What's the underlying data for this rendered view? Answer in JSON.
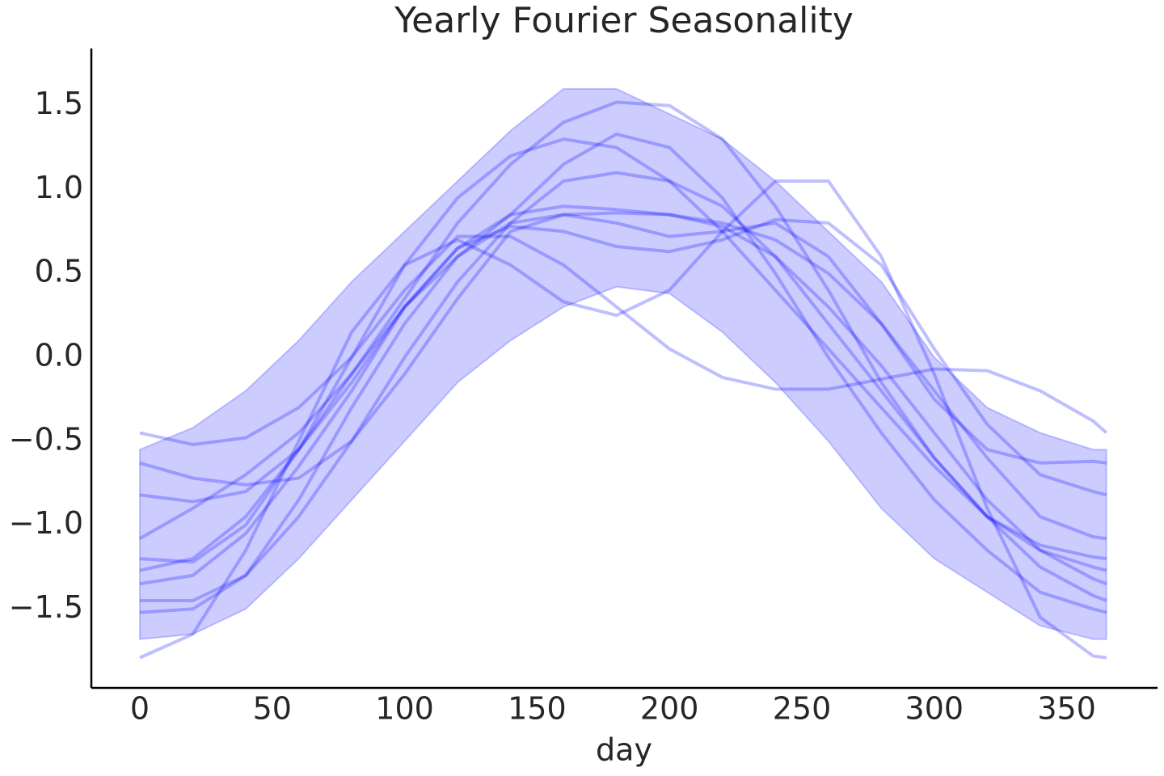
{
  "chart_data": {
    "type": "line",
    "title": "Yearly Fourier Seasonality",
    "xlabel": "day",
    "x": [
      0,
      20,
      40,
      60,
      80,
      100,
      120,
      140,
      160,
      180,
      200,
      220,
      240,
      260,
      280,
      300,
      320,
      340,
      360,
      365
    ],
    "band": {
      "color": "#0000ff",
      "opacity": 0.2,
      "upper": [
        -0.55,
        -0.42,
        -0.2,
        0.1,
        0.45,
        0.75,
        1.05,
        1.35,
        1.6,
        1.6,
        1.45,
        1.3,
        1.05,
        0.75,
        0.45,
        0.0,
        -0.3,
        -0.45,
        -0.55,
        -0.55
      ],
      "lower": [
        -1.68,
        -1.65,
        -1.5,
        -1.2,
        -0.85,
        -0.5,
        -0.15,
        0.1,
        0.3,
        0.42,
        0.38,
        0.15,
        -0.15,
        -0.5,
        -0.9,
        -1.2,
        -1.4,
        -1.6,
        -1.68,
        -1.68
      ]
    },
    "line_opacity": 0.25,
    "series": [
      {
        "color": "#0000ff",
        "values": [
          -0.45,
          -0.52,
          -0.48,
          -0.3,
          0.0,
          0.4,
          0.72,
          0.72,
          0.55,
          0.3,
          0.05,
          -0.12,
          -0.19,
          -0.19,
          -0.13,
          -0.07,
          -0.08,
          -0.2,
          -0.38,
          -0.45
        ]
      },
      {
        "color": "#0000ff",
        "values": [
          -0.63,
          -0.72,
          -0.76,
          -0.72,
          -0.5,
          -0.1,
          0.35,
          0.75,
          0.85,
          0.8,
          0.72,
          0.75,
          0.8,
          0.6,
          0.2,
          -0.25,
          -0.55,
          -0.63,
          -0.62,
          -0.63
        ]
      },
      {
        "color": "#0000ff",
        "values": [
          -0.82,
          -0.86,
          -0.8,
          -0.55,
          -0.15,
          0.3,
          0.65,
          0.78,
          0.75,
          0.66,
          0.63,
          0.7,
          0.82,
          0.8,
          0.55,
          0.05,
          -0.4,
          -0.7,
          -0.8,
          -0.82
        ]
      },
      {
        "color": "#0000ff",
        "values": [
          -1.08,
          -0.9,
          -0.7,
          -0.45,
          -0.1,
          0.3,
          0.6,
          0.8,
          0.85,
          0.86,
          0.85,
          0.8,
          0.7,
          0.5,
          0.2,
          -0.2,
          -0.6,
          -0.95,
          -1.07,
          -1.08
        ]
      },
      {
        "color": "#0000ff",
        "values": [
          -1.2,
          -1.22,
          -1.0,
          -0.55,
          0.0,
          0.55,
          0.95,
          1.2,
          1.3,
          1.25,
          1.05,
          0.75,
          0.4,
          0.05,
          -0.3,
          -0.65,
          -0.95,
          -1.12,
          -1.19,
          -1.2
        ]
      },
      {
        "color": "#0000ff",
        "values": [
          -1.27,
          -1.2,
          -0.95,
          -0.55,
          -0.1,
          0.35,
          0.8,
          1.15,
          1.4,
          1.52,
          1.5,
          1.3,
          0.9,
          0.4,
          -0.15,
          -0.6,
          -0.95,
          -1.15,
          -1.25,
          -1.27
        ]
      },
      {
        "color": "#0000ff",
        "values": [
          -1.35,
          -1.3,
          -1.05,
          -0.65,
          -0.2,
          0.3,
          0.65,
          0.85,
          0.9,
          0.88,
          0.85,
          0.78,
          0.6,
          0.3,
          -0.05,
          -0.45,
          -0.85,
          -1.15,
          -1.32,
          -1.35
        ]
      },
      {
        "color": "#0000ff",
        "values": [
          -1.45,
          -1.45,
          -1.3,
          -0.95,
          -0.5,
          0.0,
          0.45,
          0.8,
          1.05,
          1.1,
          1.05,
          0.9,
          0.6,
          0.2,
          -0.2,
          -0.6,
          -0.95,
          -1.25,
          -1.42,
          -1.45
        ]
      },
      {
        "color": "#0000ff",
        "values": [
          -1.52,
          -1.5,
          -1.3,
          -0.85,
          -0.3,
          0.2,
          0.6,
          0.85,
          1.15,
          1.33,
          1.25,
          0.95,
          0.5,
          0.0,
          -0.45,
          -0.85,
          -1.15,
          -1.4,
          -1.5,
          -1.52
        ]
      },
      {
        "color": "#0000ff",
        "values": [
          -1.79,
          -1.65,
          -1.15,
          -0.5,
          0.15,
          0.55,
          0.7,
          0.55,
          0.33,
          0.25,
          0.4,
          0.75,
          1.05,
          1.05,
          0.6,
          -0.1,
          -0.9,
          -1.55,
          -1.78,
          -1.79
        ]
      }
    ],
    "xlim": [
      -18.3,
      384.3
    ],
    "xticks": [
      0,
      50,
      100,
      150,
      200,
      250,
      300,
      350
    ],
    "ylim": [
      -1.97,
      1.84
    ],
    "yticks": [
      {
        "value": -1.5,
        "label": "−1.5"
      },
      {
        "value": -1.0,
        "label": "−1.0"
      },
      {
        "value": -0.5,
        "label": "−0.5"
      },
      {
        "value": 0,
        "label": "0.0"
      },
      0.5,
      {
        "value": 1.0,
        "label": "1.0"
      },
      1.5
    ],
    "grid": false
  }
}
